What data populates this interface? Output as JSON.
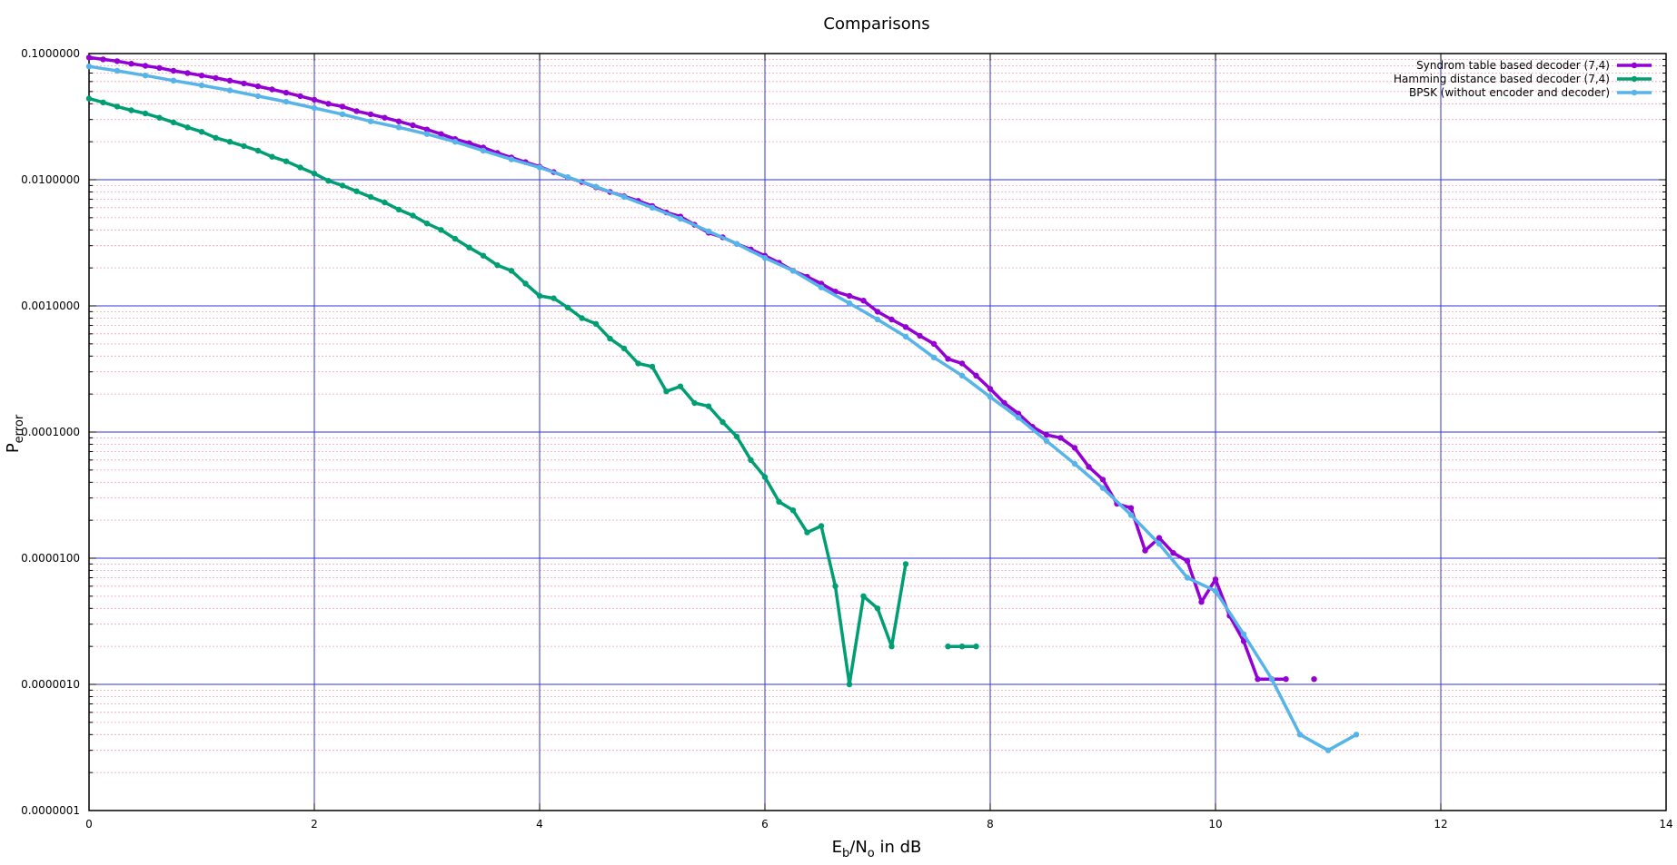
{
  "chart_data": {
    "type": "line",
    "title": "Comparisons",
    "xlabel": {
      "main": "E",
      "sub1": "b",
      "mid": "/N",
      "sub2": "o",
      "tail": " in dB"
    },
    "ylabel": {
      "main": "P",
      "sub": "error"
    },
    "xlim": [
      0,
      14
    ],
    "ylim": [
      1e-07,
      0.1
    ],
    "yscale": "log",
    "xticks": [
      0,
      2,
      4,
      6,
      8,
      10,
      12,
      14
    ],
    "yticks": [
      {
        "value": 0.1,
        "label": "0.1000000"
      },
      {
        "value": 0.01,
        "label": "0.0100000"
      },
      {
        "value": 0.001,
        "label": "0.0010000"
      },
      {
        "value": 0.0001,
        "label": "0.0001000"
      },
      {
        "value": 1e-05,
        "label": "0.0000100"
      },
      {
        "value": 1e-06,
        "label": "0.0000010"
      },
      {
        "value": 1e-07,
        "label": "0.0000001"
      }
    ],
    "grid": true,
    "legend_position": "top-right",
    "series": [
      {
        "name": "Syndrom table based decoder (7,4)",
        "color": "#9400d3",
        "points": [
          [
            0,
            0.093
          ],
          [
            0.125,
            0.09
          ],
          [
            0.25,
            0.087
          ],
          [
            0.375,
            0.083
          ],
          [
            0.5,
            0.08
          ],
          [
            0.625,
            0.077
          ],
          [
            0.75,
            0.073
          ],
          [
            0.875,
            0.07
          ],
          [
            1,
            0.067
          ],
          [
            1.125,
            0.064
          ],
          [
            1.25,
            0.061
          ],
          [
            1.375,
            0.058
          ],
          [
            1.5,
            0.055
          ],
          [
            1.625,
            0.052
          ],
          [
            1.75,
            0.049
          ],
          [
            1.875,
            0.046
          ],
          [
            2,
            0.043
          ],
          [
            2.125,
            0.04
          ],
          [
            2.25,
            0.038
          ],
          [
            2.375,
            0.035
          ],
          [
            2.5,
            0.033
          ],
          [
            2.625,
            0.031
          ],
          [
            2.75,
            0.029
          ],
          [
            2.875,
            0.027
          ],
          [
            3,
            0.025
          ],
          [
            3.125,
            0.023
          ],
          [
            3.25,
            0.021
          ],
          [
            3.375,
            0.0195
          ],
          [
            3.5,
            0.018
          ],
          [
            3.625,
            0.0163
          ],
          [
            3.75,
            0.015
          ],
          [
            3.875,
            0.0138
          ],
          [
            4,
            0.0127
          ],
          [
            4.125,
            0.0115
          ],
          [
            4.25,
            0.0104
          ],
          [
            4.375,
            0.0096
          ],
          [
            4.5,
            0.0087
          ],
          [
            4.625,
            0.008
          ],
          [
            4.75,
            0.0074
          ],
          [
            4.875,
            0.0068
          ],
          [
            5,
            0.0062
          ],
          [
            5.125,
            0.0055
          ],
          [
            5.25,
            0.0051
          ],
          [
            5.375,
            0.0044
          ],
          [
            5.5,
            0.0038
          ],
          [
            5.625,
            0.0035
          ],
          [
            5.75,
            0.0031
          ],
          [
            5.875,
            0.0028
          ],
          [
            6,
            0.0025
          ],
          [
            6.125,
            0.0022
          ],
          [
            6.25,
            0.0019
          ],
          [
            6.375,
            0.0017
          ],
          [
            6.5,
            0.0015
          ],
          [
            6.625,
            0.0013
          ],
          [
            6.75,
            0.0012
          ],
          [
            6.875,
            0.0011
          ],
          [
            7,
            0.0009
          ],
          [
            7.125,
            0.00078
          ],
          [
            7.25,
            0.00068
          ],
          [
            7.375,
            0.00058
          ],
          [
            7.5,
            0.0005
          ],
          [
            7.625,
            0.00038
          ],
          [
            7.75,
            0.00035
          ],
          [
            7.875,
            0.00028
          ],
          [
            8,
            0.00022
          ],
          [
            8.125,
            0.00017
          ],
          [
            8.25,
            0.00014
          ],
          [
            8.375,
            0.00011
          ],
          [
            8.5,
            9.5e-05
          ],
          [
            8.625,
            9e-05
          ],
          [
            8.75,
            7.5e-05
          ],
          [
            8.875,
            5.3e-05
          ],
          [
            9,
            4.2e-05
          ],
          [
            9.125,
            2.7e-05
          ],
          [
            9.25,
            2.5e-05
          ],
          [
            9.375,
            1.15e-05
          ],
          [
            9.5,
            1.45e-05
          ],
          [
            9.625,
            1.1e-05
          ],
          [
            9.75,
            9.5e-06
          ],
          [
            9.875,
            4.5e-06
          ],
          [
            10,
            6.8e-06
          ],
          [
            10.125,
            3.5e-06
          ],
          [
            10.25,
            2.2e-06
          ],
          [
            10.375,
            1.1e-06
          ],
          [
            10.5,
            1.1e-06
          ],
          [
            10.625,
            1.1e-06
          ],
          null,
          [
            10.875,
            1.1e-06
          ]
        ]
      },
      {
        "name": "Hamming distance based decoder (7,4)",
        "color": "#009e73",
        "points": [
          [
            0,
            0.044
          ],
          [
            0.125,
            0.041
          ],
          [
            0.25,
            0.038
          ],
          [
            0.375,
            0.0355
          ],
          [
            0.5,
            0.0335
          ],
          [
            0.625,
            0.031
          ],
          [
            0.75,
            0.0285
          ],
          [
            0.875,
            0.026
          ],
          [
            1,
            0.024
          ],
          [
            1.125,
            0.0215
          ],
          [
            1.25,
            0.02
          ],
          [
            1.375,
            0.0185
          ],
          [
            1.5,
            0.017
          ],
          [
            1.625,
            0.0152
          ],
          [
            1.75,
            0.014
          ],
          [
            1.875,
            0.0125
          ],
          [
            2,
            0.0112
          ],
          [
            2.125,
            0.0098
          ],
          [
            2.25,
            0.009
          ],
          [
            2.375,
            0.0081
          ],
          [
            2.5,
            0.0073
          ],
          [
            2.625,
            0.0066
          ],
          [
            2.75,
            0.0058
          ],
          [
            2.875,
            0.0052
          ],
          [
            3,
            0.0045
          ],
          [
            3.125,
            0.004
          ],
          [
            3.25,
            0.0034
          ],
          [
            3.375,
            0.0029
          ],
          [
            3.5,
            0.0025
          ],
          [
            3.625,
            0.0021
          ],
          [
            3.75,
            0.0019
          ],
          [
            3.875,
            0.0015
          ],
          [
            4,
            0.0012
          ],
          [
            4.125,
            0.00115
          ],
          [
            4.25,
            0.00097
          ],
          [
            4.375,
            0.0008
          ],
          [
            4.5,
            0.00072
          ],
          [
            4.625,
            0.00055
          ],
          [
            4.75,
            0.00046
          ],
          [
            4.875,
            0.00035
          ],
          [
            5,
            0.00033
          ],
          [
            5.125,
            0.00021
          ],
          [
            5.25,
            0.00023
          ],
          [
            5.375,
            0.00017
          ],
          [
            5.5,
            0.00016
          ],
          [
            5.625,
            0.00012
          ],
          [
            5.75,
            9.2e-05
          ],
          [
            5.875,
            6e-05
          ],
          [
            6,
            4.4e-05
          ],
          [
            6.125,
            2.8e-05
          ],
          [
            6.25,
            2.4e-05
          ],
          [
            6.375,
            1.6e-05
          ],
          [
            6.5,
            1.8e-05
          ],
          [
            6.625,
            6e-06
          ],
          [
            6.75,
            1e-06
          ],
          [
            6.875,
            5e-06
          ],
          [
            7,
            4e-06
          ],
          [
            7.125,
            2e-06
          ],
          [
            7.25,
            9e-06
          ],
          null,
          [
            7.625,
            2e-06
          ],
          [
            7.75,
            2e-06
          ],
          [
            7.875,
            2e-06
          ]
        ]
      },
      {
        "name": "BPSK (without encoder and decoder)",
        "color": "#56b4e9",
        "points": [
          [
            0,
            0.079
          ],
          [
            0.25,
            0.073
          ],
          [
            0.5,
            0.067
          ],
          [
            0.75,
            0.061
          ],
          [
            1,
            0.056
          ],
          [
            1.25,
            0.051
          ],
          [
            1.5,
            0.046
          ],
          [
            1.75,
            0.0415
          ],
          [
            2,
            0.037
          ],
          [
            2.25,
            0.033
          ],
          [
            2.5,
            0.029
          ],
          [
            2.75,
            0.026
          ],
          [
            3,
            0.023
          ],
          [
            3.25,
            0.02
          ],
          [
            3.5,
            0.017
          ],
          [
            3.75,
            0.0145
          ],
          [
            4,
            0.0125
          ],
          [
            4.25,
            0.0105
          ],
          [
            4.5,
            0.0088
          ],
          [
            4.75,
            0.0073
          ],
          [
            5,
            0.006
          ],
          [
            5.25,
            0.0049
          ],
          [
            5.5,
            0.0039
          ],
          [
            5.75,
            0.0031
          ],
          [
            6,
            0.0024
          ],
          [
            6.25,
            0.0019
          ],
          [
            6.5,
            0.0014
          ],
          [
            6.75,
            0.00105
          ],
          [
            7,
            0.00078
          ],
          [
            7.25,
            0.00057
          ],
          [
            7.5,
            0.00039
          ],
          [
            7.75,
            0.00028
          ],
          [
            8,
            0.00019
          ],
          [
            8.25,
            0.00013
          ],
          [
            8.5,
            8.5e-05
          ],
          [
            8.75,
            5.6e-05
          ],
          [
            9,
            3.6e-05
          ],
          [
            9.25,
            2.2e-05
          ],
          [
            9.5,
            1.3e-05
          ],
          [
            9.75,
            7e-06
          ],
          [
            10,
            5.5e-06
          ],
          [
            10.25,
            2.5e-06
          ],
          [
            10.5,
            1.1e-06
          ],
          [
            10.75,
            4e-07
          ],
          [
            11,
            3e-07
          ],
          [
            11.25,
            4e-07
          ]
        ]
      }
    ]
  }
}
